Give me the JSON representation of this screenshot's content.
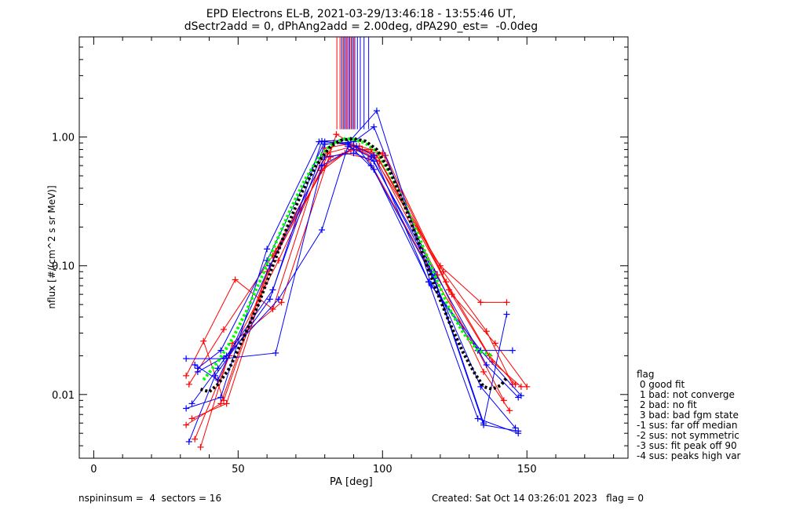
{
  "title_line1": "EPD Electrons EL-B, 2021-03-29/13:46:18 - 13:55:46 UT,",
  "title_line2": "dSectr2add = 0, dPhAng2add = 2.00deg, dPA290_est=  -0.0deg",
  "footer": {
    "left": "nspininsum =  4  sectors = 16",
    "right": "Created: Sat Oct 14 03:26:01 2023   flag = 0"
  },
  "legend": {
    "title": "flag",
    "items": [
      " 0 good fit",
      " 1 bad: not converge",
      " 2 bad: no fit",
      " 3 bad: bad fgm state",
      "-1 sus: far off median",
      "-2 sus: not symmetric",
      "-3 sus: fit peak off 90",
      "-4 sus: peaks high var"
    ]
  },
  "colors": {
    "red": "#ff0000",
    "blue": "#0000ff",
    "green": "#00ff00",
    "black": "#000000"
  },
  "chart_data": {
    "type": "line",
    "xlabel": "PA [deg]",
    "ylabel": "nflux [#/(cm^2 s sr MeV)]",
    "xlim": [
      -5,
      185
    ],
    "ylim": [
      0.0032,
      6.0
    ],
    "yscale": "log",
    "xticks": [
      0,
      50,
      100,
      150
    ],
    "xtick_labels": [
      "0",
      "50",
      "100",
      "150"
    ],
    "yticks": [
      0.01,
      0.1,
      1.0
    ],
    "ytick_labels": [
      "0.01",
      "0.10",
      "1.00"
    ],
    "peak_markers": {
      "red_x": [
        84.2,
        85.3,
        86.4,
        87.3,
        88.2,
        89.1,
        90.0
      ],
      "blue_x": [
        85.9,
        86.8,
        87.7,
        88.6,
        89.5,
        90.4,
        91.3,
        92.3,
        93.6,
        95.2
      ],
      "y_top": 6.0,
      "y_bottom": 1.15
    },
    "series": [
      {
        "color": "red",
        "x": [
          32,
          49,
          62,
          80,
          88,
          97,
          120,
          134,
          143
        ],
        "y": [
          0.014,
          0.078,
          0.046,
          0.82,
          0.88,
          0.7,
          0.1,
          0.052,
          0.052
        ]
      },
      {
        "color": "red",
        "x": [
          33,
          45,
          62,
          81,
          90,
          98,
          121,
          136,
          145
        ],
        "y": [
          0.012,
          0.032,
          0.12,
          0.75,
          0.85,
          0.72,
          0.09,
          0.031,
          0.012
        ]
      },
      {
        "color": "red",
        "x": [
          34,
          46,
          63,
          82,
          91,
          99,
          122,
          137,
          146
        ],
        "y": [
          0.0065,
          0.0085,
          0.13,
          0.7,
          0.8,
          0.65,
          0.075,
          0.02,
          0.012
        ]
      },
      {
        "color": "red",
        "x": [
          35,
          47,
          64,
          83,
          92,
          100,
          123,
          138,
          148
        ],
        "y": [
          0.0045,
          0.02,
          0.11,
          0.9,
          0.85,
          0.75,
          0.065,
          0.018,
          0.0115
        ]
      },
      {
        "color": "red",
        "x": [
          37,
          48,
          65,
          84,
          93,
          101,
          124,
          139,
          150
        ],
        "y": [
          0.0039,
          0.025,
          0.052,
          1.05,
          0.8,
          0.72,
          0.06,
          0.025,
          0.0115
        ]
      },
      {
        "color": "red",
        "x": [
          38,
          45,
          61,
          80,
          89,
          96,
          119,
          135,
          144
        ],
        "y": [
          0.026,
          0.009,
          0.1,
          0.6,
          0.8,
          0.8,
          0.085,
          0.015,
          0.0075
        ]
      },
      {
        "color": "red",
        "x": [
          32,
          44,
          60,
          79,
          87,
          95,
          118,
          133,
          142
        ],
        "y": [
          0.0058,
          0.0085,
          0.09,
          0.55,
          0.75,
          0.68,
          0.08,
          0.022,
          0.009
        ]
      },
      {
        "color": "blue",
        "x": [
          32,
          44,
          60,
          78,
          88,
          97,
          116,
          133,
          147
        ],
        "y": [
          0.0078,
          0.0095,
          0.135,
          0.92,
          0.9,
          0.72,
          0.075,
          0.0065,
          0.005
        ]
      },
      {
        "color": "blue",
        "x": [
          33,
          42,
          61,
          79,
          89,
          98,
          117,
          134,
          148
        ],
        "y": [
          0.0043,
          0.014,
          0.055,
          0.93,
          0.95,
          1.6,
          0.07,
          0.022,
          0.0098
        ]
      },
      {
        "color": "blue",
        "x": [
          34,
          43,
          62,
          80,
          90,
          97,
          118,
          135,
          143
        ],
        "y": [
          0.0085,
          0.016,
          0.065,
          0.88,
          0.92,
          1.2,
          0.08,
          0.006,
          0.042
        ]
      },
      {
        "color": "blue",
        "x": [
          32,
          45,
          63,
          79,
          91,
          96,
          117,
          134,
          146
        ],
        "y": [
          0.019,
          0.019,
          0.021,
          0.6,
          0.85,
          0.6,
          0.085,
          0.0115,
          0.0055
        ]
      },
      {
        "color": "blue",
        "x": [
          36,
          44,
          60,
          80,
          88,
          97,
          116,
          133,
          145
        ],
        "y": [
          0.016,
          0.022,
          0.11,
          0.92,
          0.88,
          0.56,
          0.075,
          0.022,
          0.022
        ]
      },
      {
        "color": "blue",
        "x": [
          35,
          43,
          61,
          80,
          90,
          97,
          117,
          135,
          147
        ],
        "y": [
          0.017,
          0.013,
          0.1,
          0.7,
          0.75,
          0.65,
          0.09,
          0.0058,
          0.0052
        ]
      },
      {
        "color": "blue",
        "x": [
          36,
          46,
          64,
          79,
          88,
          96,
          118,
          136,
          147
        ],
        "y": [
          0.015,
          0.02,
          0.055,
          0.19,
          0.85,
          0.7,
          0.09,
          0.017,
          0.0095
        ]
      }
    ],
    "fit_curves": [
      {
        "color": "green",
        "x": [
          38,
          43,
          48,
          53,
          58,
          63,
          68,
          73,
          78,
          83,
          87,
          90,
          94,
          98,
          103,
          108,
          113,
          118,
          123,
          128,
          133,
          138
        ],
        "y": [
          0.013,
          0.018,
          0.027,
          0.045,
          0.08,
          0.15,
          0.27,
          0.46,
          0.7,
          0.9,
          0.97,
          0.96,
          0.9,
          0.77,
          0.5,
          0.29,
          0.16,
          0.085,
          0.047,
          0.03,
          0.022,
          0.02
        ]
      },
      {
        "color": "black",
        "x": [
          37,
          40,
          43,
          47,
          52,
          57,
          62,
          67,
          72,
          77,
          82,
          86,
          90,
          94,
          98,
          103,
          108,
          113,
          118,
          123,
          128,
          132,
          135,
          138,
          141,
          143
        ],
        "y": [
          0.011,
          0.0105,
          0.012,
          0.016,
          0.028,
          0.05,
          0.1,
          0.2,
          0.37,
          0.6,
          0.85,
          0.95,
          0.97,
          0.93,
          0.8,
          0.52,
          0.28,
          0.14,
          0.07,
          0.037,
          0.021,
          0.0145,
          0.0115,
          0.011,
          0.0118,
          0.0135
        ]
      }
    ]
  }
}
